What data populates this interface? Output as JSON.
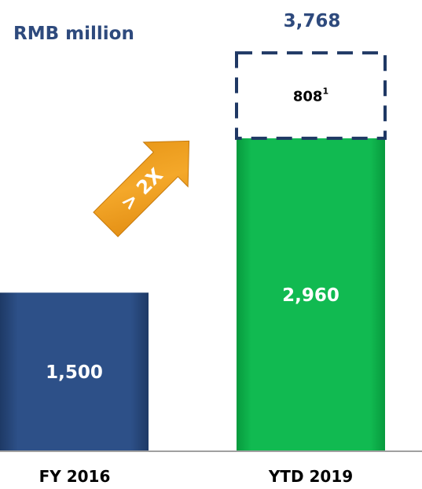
{
  "chart_data": {
    "type": "bar",
    "unit_label": "RMB million",
    "categories": [
      "FY 2016",
      "YTD 2019"
    ],
    "series": [
      {
        "values": [
          1500,
          2960
        ]
      },
      {
        "values": [
          0,
          808
        ]
      }
    ],
    "data_labels": [
      "1,500",
      "2,960"
    ],
    "incremental_label": "808",
    "incremental_footnote": "1",
    "total_label": "3,768",
    "total_value": 3768,
    "growth_annotation": "> 2X",
    "colors": {
      "fy2016_bar": "#2B4C7E",
      "ytd2019_bar": "#0DB14B",
      "dashed_outline": "#1F3864",
      "unit_text": "#2E4A7D",
      "total_text": "#2E4A7D",
      "arrow": "#F0A020",
      "axis": "#999999"
    },
    "grid": false
  }
}
